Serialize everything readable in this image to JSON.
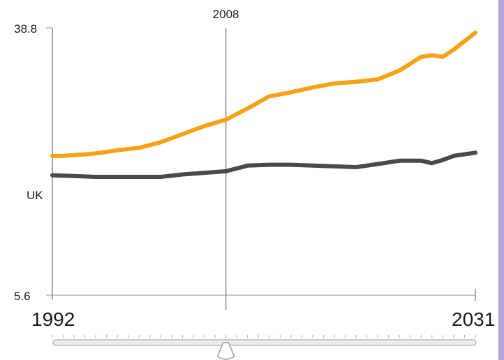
{
  "chart_data": {
    "type": "line",
    "x_range": [
      1992,
      2031
    ],
    "ylim": [
      5.6,
      38.8
    ],
    "y_ticks": [
      "38.8",
      "5.6"
    ],
    "x_end_labels": [
      "1992",
      "2031"
    ],
    "marker_year": 2008,
    "marker_label": "2008",
    "series": [
      {
        "name": "",
        "color": "#f5a214",
        "x": [
          1992,
          1993,
          1994,
          1996,
          1998,
          2000,
          2002,
          2004,
          2006,
          2008,
          2010,
          2012,
          2014,
          2016,
          2018,
          2020,
          2022,
          2024,
          2026,
          2027,
          2028,
          2029,
          2031
        ],
        "y": [
          22.9,
          22.9,
          23.0,
          23.2,
          23.6,
          23.9,
          24.6,
          25.6,
          26.6,
          27.4,
          28.8,
          30.3,
          30.8,
          31.4,
          31.9,
          32.1,
          32.4,
          33.5,
          35.2,
          35.4,
          35.2,
          36.1,
          38.2
        ]
      },
      {
        "name": "UK",
        "color": "#4a4a4a",
        "x": [
          1992,
          1994,
          1996,
          1998,
          2000,
          2002,
          2004,
          2006,
          2008,
          2010,
          2012,
          2014,
          2016,
          2018,
          2020,
          2022,
          2024,
          2026,
          2027,
          2028,
          2029,
          2031
        ],
        "y": [
          20.5,
          20.4,
          20.3,
          20.3,
          20.3,
          20.3,
          20.6,
          20.8,
          21.0,
          21.7,
          21.8,
          21.8,
          21.7,
          21.6,
          21.5,
          21.9,
          22.3,
          22.3,
          22.0,
          22.4,
          22.9,
          23.3
        ]
      }
    ],
    "series_label": "UK"
  },
  "slider": {
    "min_year": 1992,
    "max_year": 2031,
    "value": 2008
  },
  "colors": {
    "axis": "#8c8c8c",
    "slider_track": "#b8b8b8",
    "side_band": "#b6a6dc"
  }
}
